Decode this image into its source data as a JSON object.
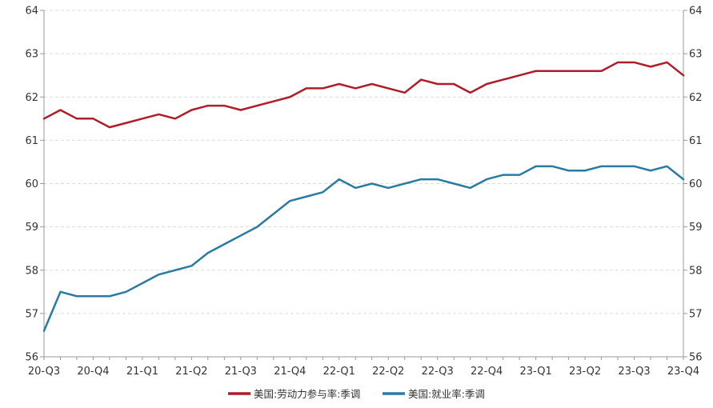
{
  "chart_data": {
    "type": "line",
    "title": "",
    "xlabel": "",
    "ylabel": "",
    "ylim": [
      56,
      64
    ],
    "ylim_right": [
      56,
      64
    ],
    "y_ticks": [
      "56",
      "57",
      "58",
      "59",
      "60",
      "61",
      "62",
      "63",
      "64"
    ],
    "x_tick_labels": [
      "20-Q3",
      "20-Q4",
      "21-Q1",
      "21-Q2",
      "21-Q3",
      "21-Q4",
      "22-Q1",
      "22-Q2",
      "22-Q3",
      "22-Q4",
      "23-Q1",
      "23-Q2",
      "23-Q3",
      "23-Q4"
    ],
    "grid": "horizontal dashed",
    "legend_position": "bottom-center",
    "series": [
      {
        "name": "美国:劳动力参与率:季调",
        "color": "#b01c28",
        "values": [
          61.5,
          61.7,
          61.5,
          61.5,
          61.3,
          61.4,
          61.5,
          61.6,
          61.5,
          61.7,
          61.8,
          61.8,
          61.7,
          61.8,
          61.9,
          62.0,
          62.2,
          62.2,
          62.3,
          62.2,
          62.3,
          62.2,
          62.1,
          62.4,
          62.3,
          62.3,
          62.1,
          62.3,
          62.4,
          62.5,
          62.6,
          62.6,
          62.6,
          62.6,
          62.6,
          62.8,
          62.8,
          62.7,
          62.8,
          62.5
        ]
      },
      {
        "name": "美国:就业率:季调",
        "color": "#2a7ba3",
        "values": [
          56.6,
          57.5,
          57.4,
          57.4,
          57.4,
          57.5,
          57.7,
          57.9,
          58.0,
          58.1,
          58.4,
          58.6,
          58.8,
          59.0,
          59.3,
          59.6,
          59.7,
          59.8,
          60.1,
          59.9,
          60.0,
          59.9,
          60.0,
          60.1,
          60.1,
          60.0,
          59.9,
          60.1,
          60.2,
          60.2,
          60.4,
          60.4,
          60.3,
          60.3,
          60.4,
          60.4,
          60.4,
          60.3,
          60.4,
          60.1
        ]
      }
    ]
  }
}
